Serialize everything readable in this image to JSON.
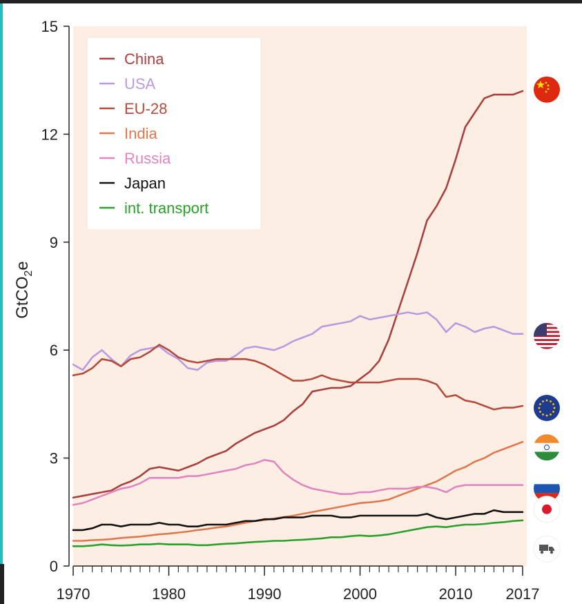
{
  "chart_data": {
    "type": "line",
    "ylabel": "GtCO2e",
    "ylabel_main": "GtCO",
    "ylabel_sub": "2",
    "ylabel_tail": "e",
    "xlim": [
      1970,
      2017
    ],
    "ylim": [
      0,
      15
    ],
    "x_ticks": [
      1970,
      1980,
      1990,
      2000,
      2010,
      2017
    ],
    "y_ticks": [
      0,
      3,
      6,
      9,
      12,
      15
    ],
    "legend_position": "top-left",
    "background": "#fdeee4",
    "x": [
      1970,
      1971,
      1972,
      1973,
      1974,
      1975,
      1976,
      1977,
      1978,
      1979,
      1980,
      1981,
      1982,
      1983,
      1984,
      1985,
      1986,
      1987,
      1988,
      1989,
      1990,
      1991,
      1992,
      1993,
      1994,
      1995,
      1996,
      1997,
      1998,
      1999,
      2000,
      2001,
      2002,
      2003,
      2004,
      2005,
      2006,
      2007,
      2008,
      2009,
      2010,
      2011,
      2012,
      2013,
      2014,
      2015,
      2016,
      2017
    ],
    "series": [
      {
        "name": "China",
        "color": "#a8403f",
        "icon": "china-flag-icon",
        "values": [
          1.9,
          1.95,
          2.0,
          2.05,
          2.1,
          2.25,
          2.35,
          2.5,
          2.7,
          2.75,
          2.7,
          2.65,
          2.75,
          2.85,
          3.0,
          3.1,
          3.2,
          3.4,
          3.55,
          3.7,
          3.8,
          3.9,
          4.05,
          4.3,
          4.5,
          4.85,
          4.9,
          4.95,
          4.95,
          5.0,
          5.2,
          5.4,
          5.7,
          6.3,
          7.1,
          7.9,
          8.7,
          9.6,
          10.0,
          10.5,
          11.3,
          12.2,
          12.6,
          13.0,
          13.1,
          13.1,
          13.1,
          13.2
        ]
      },
      {
        "name": "USA",
        "color": "#b99ae0",
        "icon": "usa-flag-icon",
        "values": [
          5.6,
          5.45,
          5.8,
          6.0,
          5.75,
          5.55,
          5.85,
          6.0,
          6.05,
          6.1,
          5.9,
          5.75,
          5.5,
          5.45,
          5.65,
          5.7,
          5.7,
          5.85,
          6.05,
          6.1,
          6.05,
          6.0,
          6.1,
          6.25,
          6.35,
          6.45,
          6.65,
          6.7,
          6.75,
          6.8,
          6.95,
          6.85,
          6.9,
          6.95,
          7.0,
          7.05,
          7.0,
          7.05,
          6.85,
          6.5,
          6.75,
          6.65,
          6.5,
          6.6,
          6.65,
          6.55,
          6.45,
          6.45
        ]
      },
      {
        "name": "EU-28",
        "color": "#b44a3c",
        "icon": "eu-flag-icon",
        "values": [
          5.3,
          5.35,
          5.5,
          5.75,
          5.7,
          5.55,
          5.75,
          5.8,
          5.95,
          6.15,
          6.0,
          5.8,
          5.7,
          5.65,
          5.7,
          5.75,
          5.75,
          5.75,
          5.75,
          5.7,
          5.6,
          5.45,
          5.3,
          5.15,
          5.15,
          5.2,
          5.3,
          5.2,
          5.15,
          5.1,
          5.1,
          5.1,
          5.1,
          5.15,
          5.2,
          5.2,
          5.2,
          5.15,
          5.05,
          4.7,
          4.75,
          4.6,
          4.55,
          4.45,
          4.35,
          4.4,
          4.4,
          4.45
        ]
      },
      {
        "name": "India",
        "color": "#e0784e",
        "icon": "india-flag-icon",
        "values": [
          0.7,
          0.7,
          0.72,
          0.73,
          0.75,
          0.78,
          0.8,
          0.82,
          0.85,
          0.88,
          0.9,
          0.93,
          0.96,
          1.0,
          1.03,
          1.07,
          1.1,
          1.15,
          1.2,
          1.25,
          1.28,
          1.32,
          1.36,
          1.4,
          1.45,
          1.5,
          1.55,
          1.6,
          1.65,
          1.7,
          1.75,
          1.77,
          1.8,
          1.85,
          1.95,
          2.05,
          2.15,
          2.25,
          2.35,
          2.5,
          2.65,
          2.75,
          2.9,
          3.0,
          3.15,
          3.25,
          3.35,
          3.45
        ]
      },
      {
        "name": "Russia",
        "color": "#e085c2",
        "icon": "russia-flag-icon",
        "values": [
          1.7,
          1.75,
          1.85,
          1.95,
          2.05,
          2.15,
          2.2,
          2.3,
          2.45,
          2.45,
          2.45,
          2.45,
          2.5,
          2.5,
          2.55,
          2.6,
          2.65,
          2.7,
          2.8,
          2.85,
          2.95,
          2.9,
          2.6,
          2.4,
          2.25,
          2.15,
          2.1,
          2.05,
          2.0,
          2.0,
          2.05,
          2.05,
          2.1,
          2.15,
          2.15,
          2.15,
          2.2,
          2.2,
          2.15,
          2.05,
          2.2,
          2.25,
          2.25,
          2.25,
          2.25,
          2.25,
          2.25,
          2.25
        ]
      },
      {
        "name": "Japan",
        "color": "#111111",
        "icon": "japan-flag-icon",
        "values": [
          1.0,
          1.0,
          1.05,
          1.15,
          1.15,
          1.1,
          1.15,
          1.15,
          1.15,
          1.2,
          1.15,
          1.15,
          1.1,
          1.1,
          1.15,
          1.15,
          1.15,
          1.2,
          1.25,
          1.25,
          1.3,
          1.3,
          1.35,
          1.35,
          1.35,
          1.4,
          1.4,
          1.4,
          1.35,
          1.35,
          1.4,
          1.4,
          1.4,
          1.4,
          1.4,
          1.4,
          1.4,
          1.45,
          1.35,
          1.3,
          1.35,
          1.4,
          1.45,
          1.45,
          1.55,
          1.5,
          1.5,
          1.5
        ]
      },
      {
        "name": "int. transport",
        "color": "#2aa02a",
        "icon": "truck-icon",
        "values": [
          0.55,
          0.55,
          0.57,
          0.6,
          0.58,
          0.57,
          0.58,
          0.6,
          0.6,
          0.62,
          0.6,
          0.6,
          0.6,
          0.58,
          0.58,
          0.6,
          0.62,
          0.63,
          0.65,
          0.67,
          0.68,
          0.7,
          0.7,
          0.72,
          0.73,
          0.75,
          0.77,
          0.8,
          0.8,
          0.83,
          0.85,
          0.83,
          0.85,
          0.88,
          0.93,
          0.98,
          1.03,
          1.08,
          1.1,
          1.08,
          1.12,
          1.15,
          1.15,
          1.17,
          1.2,
          1.22,
          1.25,
          1.27
        ]
      }
    ]
  },
  "colors": {
    "plot_background": "#fdeee4",
    "axis": "#222222",
    "legend_background": "#ffffff"
  }
}
